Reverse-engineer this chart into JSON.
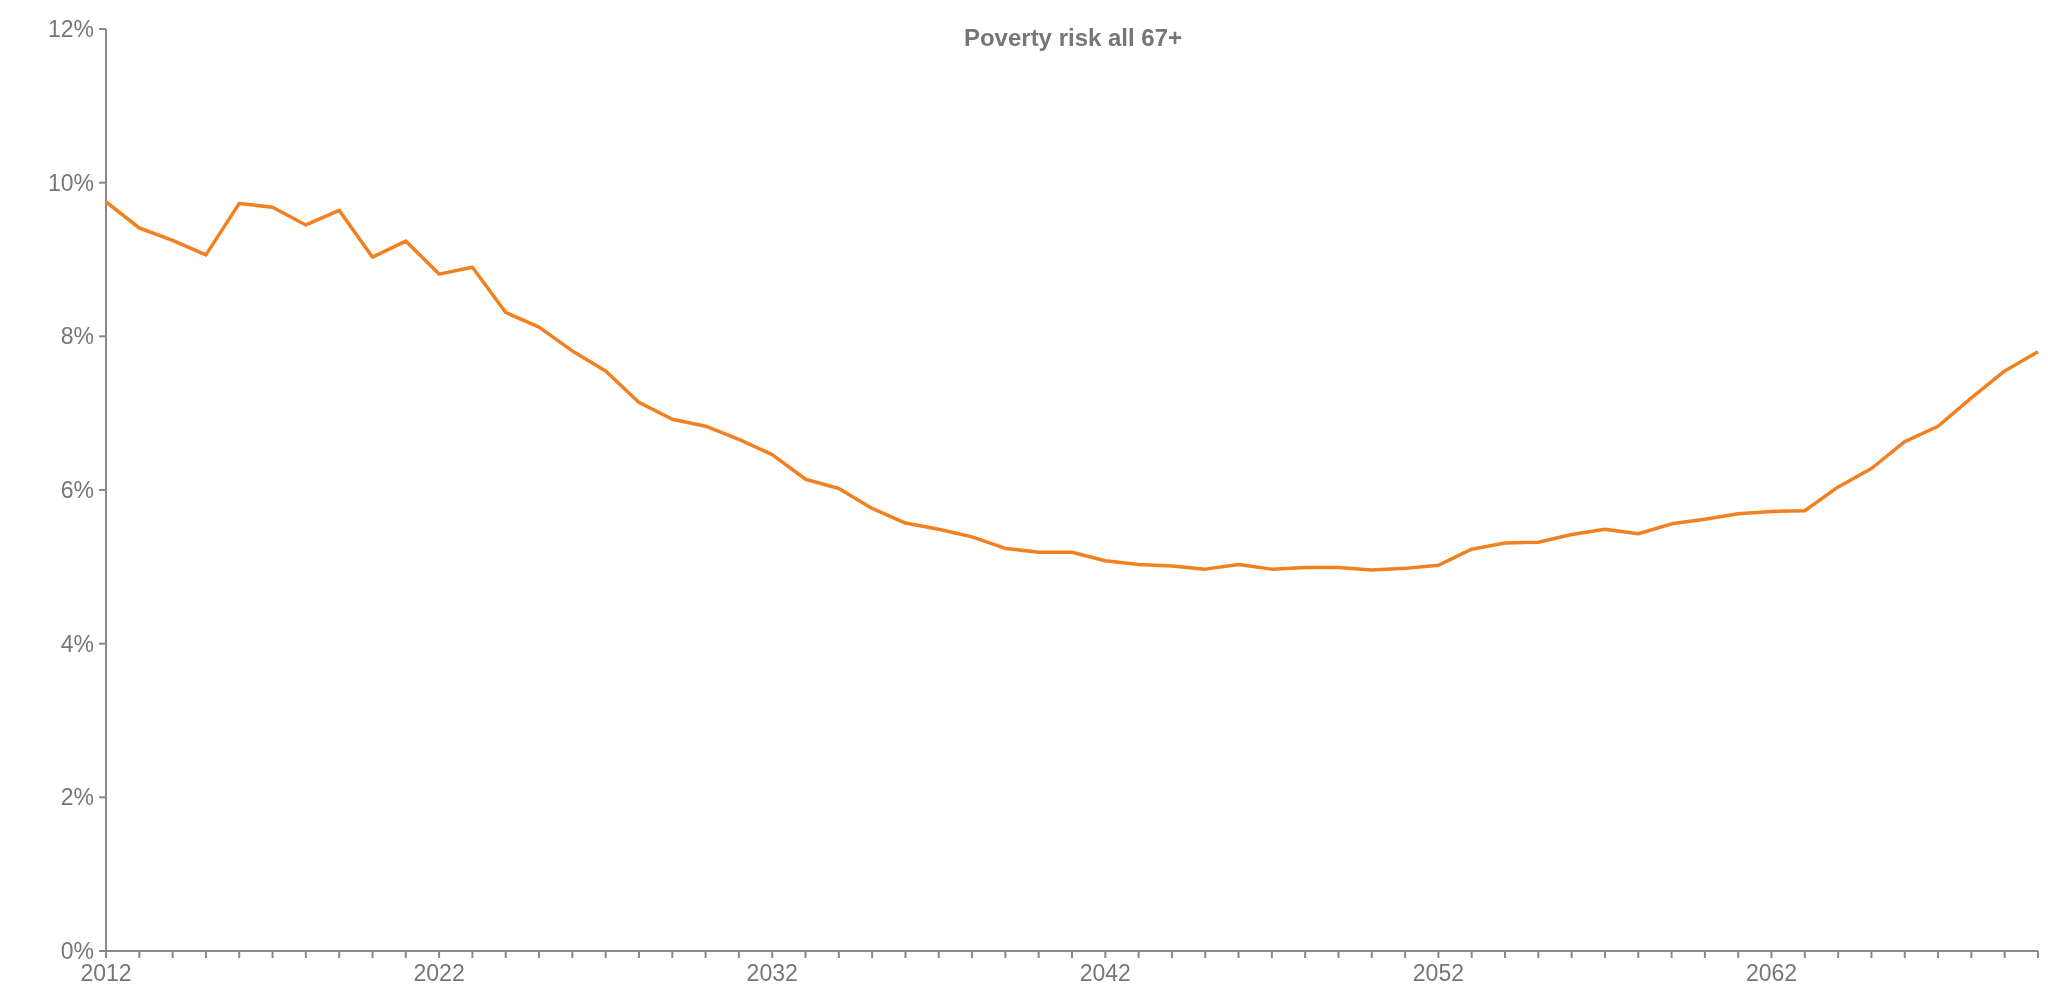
{
  "chart_data": {
    "type": "line",
    "title": "Poverty risk all 67+",
    "x": [
      2012,
      2013,
      2014,
      2015,
      2016,
      2017,
      2018,
      2019,
      2020,
      2021,
      2022,
      2023,
      2024,
      2025,
      2026,
      2027,
      2028,
      2029,
      2030,
      2031,
      2032,
      2033,
      2034,
      2035,
      2036,
      2037,
      2038,
      2039,
      2040,
      2041,
      2042,
      2043,
      2044,
      2045,
      2046,
      2047,
      2048,
      2049,
      2050,
      2051,
      2052,
      2053,
      2054,
      2055,
      2056,
      2057,
      2058,
      2059,
      2060,
      2061,
      2062,
      2063,
      2064,
      2065,
      2066,
      2067,
      2068,
      2069,
      2070
    ],
    "series": [
      {
        "color": "#f38020",
        "values": [
          9.75,
          9.41,
          9.25,
          9.06,
          9.73,
          9.68,
          9.45,
          9.64,
          9.03,
          9.24,
          8.81,
          8.9,
          8.31,
          8.12,
          7.81,
          7.55,
          7.14,
          6.92,
          6.83,
          6.66,
          6.46,
          6.14,
          6.02,
          5.76,
          5.57,
          5.49,
          5.39,
          5.24,
          5.19,
          5.19,
          5.08,
          5.03,
          5.01,
          4.97,
          5.03,
          4.97,
          4.99,
          4.99,
          4.96,
          4.98,
          5.02,
          5.23,
          5.31,
          5.32,
          5.42,
          5.49,
          5.43,
          5.56,
          5.62,
          5.69,
          5.72,
          5.73,
          6.04,
          6.28,
          6.63,
          6.83,
          7.2,
          7.55,
          7.8
        ]
      }
    ],
    "xlim": [
      2012,
      2070
    ],
    "xticks": [
      2012,
      {
        "value": 2013,
        "label": null
      },
      {
        "value": 2014,
        "label": null
      },
      {
        "value": 2015,
        "label": null
      },
      {
        "value": 2016,
        "label": null
      },
      {
        "value": 2017,
        "label": null
      },
      {
        "value": 2018,
        "label": null
      },
      {
        "value": 2019,
        "label": null
      },
      {
        "value": 2020,
        "label": null
      },
      {
        "value": 2021,
        "label": null
      },
      2022,
      {
        "value": 2023,
        "label": null
      },
      {
        "value": 2024,
        "label": null
      },
      {
        "value": 2025,
        "label": null
      },
      {
        "value": 2026,
        "label": null
      },
      {
        "value": 2027,
        "label": null
      },
      {
        "value": 2028,
        "label": null
      },
      {
        "value": 2029,
        "label": null
      },
      {
        "value": 2030,
        "label": null
      },
      {
        "value": 2031,
        "label": null
      },
      2032,
      {
        "value": 2033,
        "label": null
      },
      {
        "value": 2034,
        "label": null
      },
      {
        "value": 2035,
        "label": null
      },
      {
        "value": 2036,
        "label": null
      },
      {
        "value": 2037,
        "label": null
      },
      {
        "value": 2038,
        "label": null
      },
      {
        "value": 2039,
        "label": null
      },
      {
        "value": 2040,
        "label": null
      },
      {
        "value": 2041,
        "label": null
      },
      2042,
      {
        "value": 2043,
        "label": null
      },
      {
        "value": 2044,
        "label": null
      },
      {
        "value": 2045,
        "label": null
      },
      {
        "value": 2046,
        "label": null
      },
      {
        "value": 2047,
        "label": null
      },
      {
        "value": 2048,
        "label": null
      },
      {
        "value": 2049,
        "label": null
      },
      {
        "value": 2050,
        "label": null
      },
      {
        "value": 2051,
        "label": null
      },
      2052,
      {
        "value": 2053,
        "label": null
      },
      {
        "value": 2054,
        "label": null
      },
      {
        "value": 2055,
        "label": null
      },
      {
        "value": 2056,
        "label": null
      },
      {
        "value": 2057,
        "label": null
      },
      {
        "value": 2058,
        "label": null
      },
      {
        "value": 2059,
        "label": null
      },
      {
        "value": 2060,
        "label": null
      },
      {
        "value": 2061,
        "label": null
      },
      2062,
      {
        "value": 2063,
        "label": null
      },
      {
        "value": 2064,
        "label": null
      },
      {
        "value": 2065,
        "label": null
      },
      {
        "value": 2066,
        "label": null
      },
      {
        "value": 2067,
        "label": null
      },
      {
        "value": 2068,
        "label": null
      },
      {
        "value": 2069,
        "label": null
      },
      {
        "value": 2070,
        "label": null
      }
    ],
    "ylim": [
      0,
      12
    ],
    "yticks": [
      {
        "value": 0,
        "label": "0%"
      },
      {
        "value": 2,
        "label": "2%"
      },
      {
        "value": 4,
        "label": "4%"
      },
      {
        "value": 6,
        "label": "6%"
      },
      {
        "value": 8,
        "label": "8%"
      },
      {
        "value": 10,
        "label": "10%"
      },
      {
        "value": 12,
        "label": "12%"
      }
    ],
    "grid": false,
    "marker": "none",
    "line_style": "solid"
  }
}
